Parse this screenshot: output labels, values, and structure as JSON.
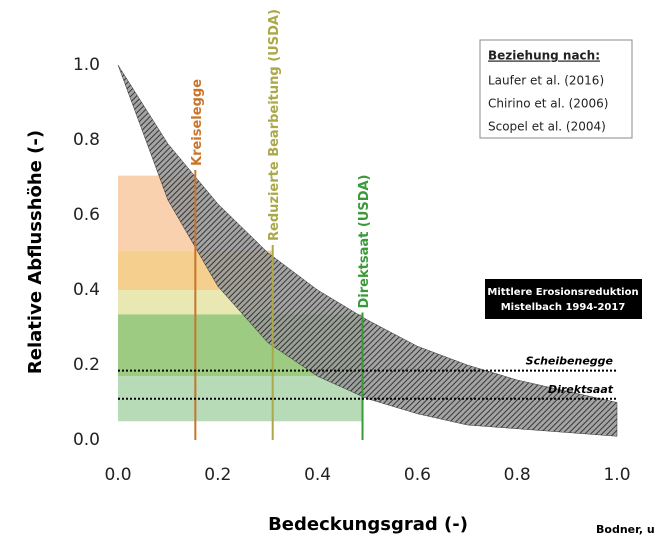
{
  "chart_data": {
    "type": "band",
    "xlabel": "Bedeckungsgrad (-)",
    "ylabel": "Relative Abflusshöhe (-)",
    "xlim": [
      0,
      1
    ],
    "ylim": [
      0,
      1
    ],
    "xticks": [
      {
        "value": 0,
        "label": "0.0"
      },
      0.2,
      0.4,
      0.6,
      0.8,
      {
        "value": 1,
        "label": "1.0"
      }
    ],
    "yticks": [
      {
        "value": 0,
        "label": "0.0"
      },
      0.2,
      0.4,
      0.6,
      0.8,
      {
        "value": 1,
        "label": "1.0"
      }
    ],
    "band": {
      "x": [
        0,
        0.1,
        0.2,
        0.3,
        0.4,
        0.5,
        0.6,
        0.7,
        0.8,
        0.9,
        1.0
      ],
      "upper": [
        1,
        0.79,
        0.63,
        0.5,
        0.4,
        0.32,
        0.25,
        0.2,
        0.16,
        0.13,
        0.1
      ],
      "lower": [
        1,
        0.64,
        0.41,
        0.26,
        0.17,
        0.11,
        0.07,
        0.04,
        0.03,
        0.02,
        0.01
      ],
      "color": "#333333"
    },
    "ranges": [
      {
        "x": [
          0,
          0.155
        ],
        "y": [
          0.505,
          0.705
        ],
        "color": "#f9c9a0"
      },
      {
        "x": [
          0,
          0.31
        ],
        "y": [
          0.4,
          0.505
        ],
        "color": "#f2c77a"
      },
      {
        "x": [
          0,
          0.31
        ],
        "y": [
          0.335,
          0.4
        ],
        "color": "#e6e4a4"
      },
      {
        "x": [
          0,
          0.49
        ],
        "y": [
          0.17,
          0.335
        ],
        "color": "#8dc26c"
      },
      {
        "x": [
          0,
          0.49
        ],
        "y": [
          0.05,
          0.17
        ],
        "color": "#a9d5a9"
      }
    ],
    "markers": [
      {
        "label": "Kreiselegge",
        "x": 0.155,
        "top": 0.72,
        "color": "#c8742a"
      },
      {
        "label": "Reduzierte Bearbeitung (USDA)",
        "x": 0.31,
        "top": 0.52,
        "color": "#aaa848"
      },
      {
        "label": "Direktsaat (USDA)",
        "x": 0.49,
        "top": 0.34,
        "color": "#3a9a3a"
      }
    ],
    "references": [
      {
        "label": "Scheibenegge",
        "y": 0.185
      },
      {
        "label": "Direktsaat",
        "y": 0.11
      }
    ],
    "box_label": [
      "Mittlere Erosionsreduktion",
      "Mistelbach 1994-2017"
    ],
    "legend": {
      "title": "Beziehung nach:",
      "entries": [
        "Laufer et al. (2016)",
        "Chirino et al. (2006)",
        "Scopel et al. (2004)"
      ]
    },
    "credit": "Bodner, u"
  }
}
